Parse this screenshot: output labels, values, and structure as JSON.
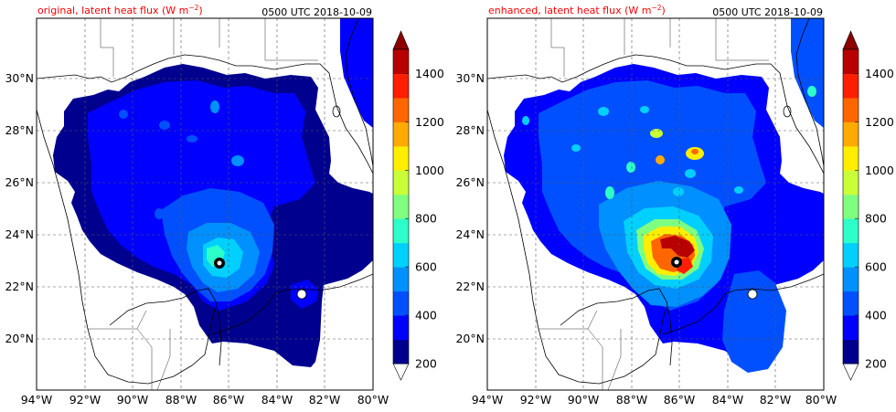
{
  "panels": [
    {
      "title_left": "original, latent heat flux (W m",
      "title_sup": "−2",
      "title_close": ")",
      "title_right": "0500 UTC 2018-10-09",
      "storm": {
        "lon": -86.3,
        "lat": 23.0,
        "max_level_index": 5,
        "core_ring": 0.85
      },
      "cells": [
        {
          "lon": -87.5,
          "lat": 28.8,
          "level": 1
        },
        {
          "lon": -85.5,
          "lat": 26.8,
          "level": 2
        },
        {
          "lon": -88.3,
          "lat": 27.4,
          "level": 1
        }
      ]
    },
    {
      "title_left": "enhanced, latent heat flux (W m",
      "title_sup": "−2",
      "title_close": ")",
      "title_right": "0500 UTC 2018-10-09",
      "storm": {
        "lon": -86.0,
        "lat": 23.0,
        "max_level_index": 12,
        "core_ring": 1.0
      },
      "cells": [
        {
          "lon": -85.2,
          "lat": 27.1,
          "level": 7
        },
        {
          "lon": -86.2,
          "lat": 27.8,
          "level": 6
        },
        {
          "lon": -86.9,
          "lat": 26.5,
          "level": 5
        },
        {
          "lon": -88.1,
          "lat": 25.7,
          "level": 5
        },
        {
          "lon": -85.5,
          "lat": 26.7,
          "level": 4
        },
        {
          "lon": -88.5,
          "lat": 28.6,
          "level": 4
        },
        {
          "lon": -84.0,
          "lat": 25.4,
          "level": 4
        },
        {
          "lon": -91.0,
          "lat": 28.3,
          "level": 3
        },
        {
          "lon": -89.4,
          "lat": 26.7,
          "level": 3
        },
        {
          "lon": -86.2,
          "lat": 28.7,
          "level": 3
        }
      ]
    }
  ],
  "lon_ticks": [
    "94°W",
    "92°W",
    "90°W",
    "88°W",
    "86°W",
    "84°W",
    "82°W",
    "80°W"
  ],
  "lat_ticks": [
    "20°N",
    "22°N",
    "24°N",
    "26°N",
    "28°N",
    "30°N"
  ],
  "colorbar": {
    "ticks": [
      "200",
      "400",
      "600",
      "800",
      "1000",
      "1200",
      "1400"
    ],
    "levels": [
      200,
      300,
      400,
      500,
      600,
      700,
      800,
      900,
      1000,
      1100,
      1200,
      1300,
      1400,
      1500
    ],
    "colors": [
      "#00008f",
      "#0000ff",
      "#0050ff",
      "#0090ff",
      "#00d0ff",
      "#2cffc9",
      "#7fff80",
      "#c8ff37",
      "#ffee00",
      "#ffaa00",
      "#ff6600",
      "#ff1e00",
      "#b80000"
    ],
    "under_color": "#ffffff",
    "over_color": "#8b0000"
  },
  "map": {
    "lon_min": -94,
    "lon_max": -80,
    "lat_min": 18,
    "lat_max": 32.3
  }
}
